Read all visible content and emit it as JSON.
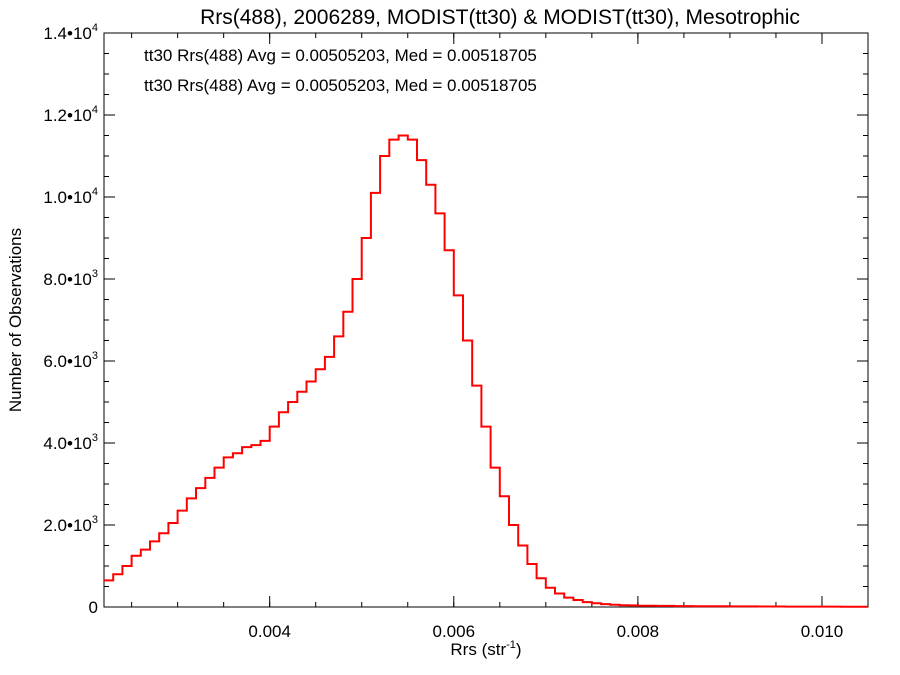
{
  "chart_data": {
    "type": "histogram-step",
    "title": "Rrs(488), 2006289, MODIST(tt30) & MODIST(tt30), Mesotrophic",
    "xlabel_main": "Rrs (str",
    "xlabel_sup": "-1",
    "xlabel_close": ")",
    "ylabel": "Number of Observations",
    "xlim": [
      0.0022,
      0.0105
    ],
    "ylim": [
      0,
      14000
    ],
    "x_ticks": [
      {
        "value": 0.004,
        "label": "0.004"
      },
      {
        "value": 0.006,
        "label": "0.006"
      },
      {
        "value": 0.008,
        "label": "0.008"
      },
      {
        "value": 0.01,
        "label": "0.010"
      }
    ],
    "y_ticks": [
      {
        "value": 0,
        "mantissa": "0",
        "exp": ""
      },
      {
        "value": 2000,
        "mantissa": "2.0•10",
        "exp": "3"
      },
      {
        "value": 4000,
        "mantissa": "4.0•10",
        "exp": "3"
      },
      {
        "value": 6000,
        "mantissa": "6.0•10",
        "exp": "3"
      },
      {
        "value": 8000,
        "mantissa": "8.0•10",
        "exp": "3"
      },
      {
        "value": 10000,
        "mantissa": "1.0•10",
        "exp": "4"
      },
      {
        "value": 12000,
        "mantissa": "1.2•10",
        "exp": "4"
      },
      {
        "value": 14000,
        "mantissa": "1.4•10",
        "exp": "4"
      }
    ],
    "x_minor_step": 0.0005,
    "y_minor_step": 500,
    "legend": [
      {
        "text": "tt30 Rrs(488) Avg = 0.00505203, Med = 0.00518705",
        "color": "#000000"
      },
      {
        "text": "tt30 Rrs(488) Avg = 0.00505203, Med = 0.00518705",
        "color": "#ff0000"
      }
    ],
    "legend_position": "top-left",
    "series": [
      {
        "color": "#ff0000",
        "x": [
          0.0022,
          0.0023,
          0.0024,
          0.0025,
          0.0026,
          0.0027,
          0.0028,
          0.0029,
          0.003,
          0.0031,
          0.0032,
          0.0033,
          0.0034,
          0.0035,
          0.0036,
          0.0037,
          0.0038,
          0.0039,
          0.004,
          0.0041,
          0.0042,
          0.0043,
          0.0044,
          0.0045,
          0.0046,
          0.0047,
          0.0048,
          0.0049,
          0.005,
          0.0051,
          0.0052,
          0.0053,
          0.0054,
          0.0055,
          0.0056,
          0.0057,
          0.0058,
          0.0059,
          0.006,
          0.0061,
          0.0062,
          0.0063,
          0.0064,
          0.0065,
          0.0066,
          0.0067,
          0.0068,
          0.0069,
          0.007,
          0.0071,
          0.0072,
          0.0073,
          0.0074,
          0.0075,
          0.0076,
          0.0077,
          0.0078,
          0.0079,
          0.008,
          0.0082,
          0.0084,
          0.0086,
          0.0088,
          0.009,
          0.0093,
          0.0096,
          0.0099,
          0.0102,
          0.0105
        ],
        "y": [
          650,
          800,
          1000,
          1250,
          1400,
          1600,
          1800,
          2050,
          2350,
          2650,
          2900,
          3150,
          3400,
          3650,
          3750,
          3900,
          3950,
          4050,
          4400,
          4750,
          5000,
          5250,
          5500,
          5800,
          6100,
          6600,
          7200,
          8000,
          9000,
          10100,
          11000,
          11400,
          11500,
          11400,
          10900,
          10300,
          9600,
          8700,
          7600,
          6500,
          5400,
          4400,
          3400,
          2700,
          2000,
          1500,
          1050,
          700,
          470,
          330,
          230,
          170,
          120,
          90,
          70,
          55,
          45,
          38,
          32,
          26,
          22,
          19,
          16,
          14,
          12,
          10,
          9,
          8,
          8
        ]
      }
    ]
  }
}
